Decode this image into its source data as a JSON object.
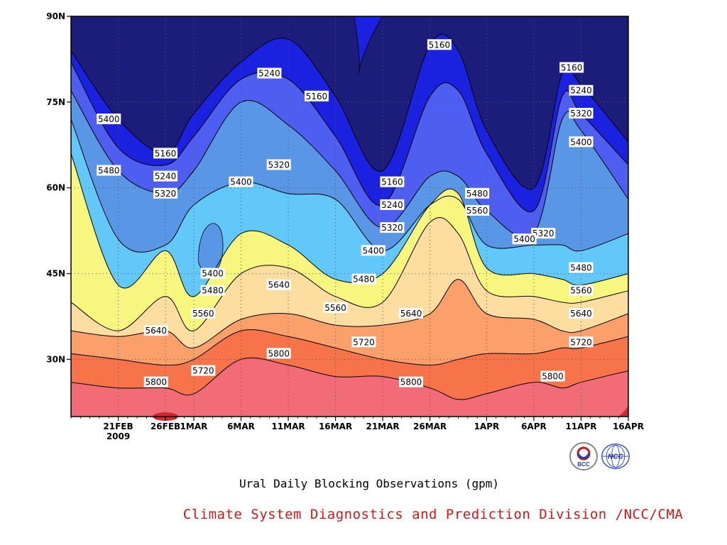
{
  "chart_data": {
    "type": "heatmap",
    "subtype": "filled contour (latitude-time Hovmoller)",
    "title": "Ural Daily Blocking Observations (gpm)",
    "x_axis": {
      "type": "date",
      "range": [
        "2009-02-16",
        "2009-04-16"
      ],
      "tick_labels": [
        "21FEB",
        "26FEB",
        "1MAR",
        "6MAR",
        "11MAR",
        "16MAR",
        "21MAR",
        "26MAR",
        "1APR",
        "6APR",
        "11APR",
        "16APR"
      ],
      "tick_dates": [
        "2009-02-21",
        "2009-02-26",
        "2009-03-01",
        "2009-03-06",
        "2009-03-11",
        "2009-03-16",
        "2009-03-21",
        "2009-03-26",
        "2009-04-01",
        "2009-04-06",
        "2009-04-11",
        "2009-04-16"
      ],
      "year_label": "2009"
    },
    "y_axis": {
      "range_degN": [
        20,
        90
      ],
      "tick_labels": [
        "30N",
        "45N",
        "60N",
        "75N",
        "90N"
      ],
      "tick_values": [
        30,
        45,
        60,
        75,
        90
      ]
    },
    "grid": "dotted",
    "contour_levels": [
      5160,
      5240,
      5320,
      5400,
      5480,
      5560,
      5640,
      5720,
      5800
    ],
    "fill_colors": [
      "#1c1c7a",
      "#1a22e0",
      "#4e5ef0",
      "#5a96e6",
      "#62c8fa",
      "#f7f780",
      "#fddda0",
      "#fba06a",
      "#f7744a",
      "#f26c78",
      "#d82630"
    ],
    "x_nodes": [
      "2009-02-16",
      "2009-02-21",
      "2009-02-26",
      "2009-03-01",
      "2009-03-06",
      "2009-03-11",
      "2009-03-16",
      "2009-03-21",
      "2009-03-26",
      "2009-03-29",
      "2009-04-01",
      "2009-04-06",
      "2009-04-09",
      "2009-04-11",
      "2009-04-16"
    ],
    "contours_latitude_degN": [
      {
        "level": 5160,
        "lat": [
          84,
          72,
          66,
          73,
          82,
          86,
          76,
          63,
          85,
          84,
          70,
          60,
          80,
          78,
          68
        ]
      },
      {
        "level": 5240,
        "lat": [
          82,
          67,
          64,
          69,
          79,
          79,
          69,
          57,
          76,
          77,
          66,
          56,
          76,
          73,
          64
        ]
      },
      {
        "level": 5320,
        "lat": [
          77,
          63,
          59,
          63,
          75,
          71,
          63,
          53,
          62,
          62,
          56,
          52,
          72,
          70,
          58
        ]
      },
      {
        "level": 5400,
        "lat": [
          72,
          51,
          50,
          57,
          61,
          59,
          58,
          49,
          57,
          58,
          50,
          50,
          50,
          49,
          52
        ]
      },
      {
        "level": 5480,
        "lat": [
          66,
          43,
          49,
          41,
          52,
          50,
          44,
          45,
          57,
          59,
          46,
          45,
          44,
          43,
          45
        ]
      },
      {
        "level": 5560,
        "lat": [
          40,
          35,
          41,
          35,
          45,
          46,
          41,
          40,
          54,
          52,
          42,
          41,
          40,
          40,
          42
        ]
      },
      {
        "level": 5640,
        "lat": [
          35,
          34,
          35,
          32,
          37,
          38,
          36,
          36,
          38,
          44,
          38,
          37,
          35,
          35,
          38
        ]
      },
      {
        "level": 5720,
        "lat": [
          31,
          30,
          29,
          30,
          35,
          34,
          32,
          30,
          29,
          30,
          31,
          31,
          32,
          32,
          34
        ]
      },
      {
        "level": 5800,
        "lat": [
          26,
          25,
          25,
          24,
          30,
          29,
          27,
          27,
          25,
          23,
          24,
          26,
          25,
          26,
          28
        ]
      }
    ],
    "contour_labels": [
      {
        "text": "5400",
        "date": "2009-02-20",
        "lat": 72
      },
      {
        "text": "5480",
        "date": "2009-02-20",
        "lat": 63
      },
      {
        "text": "5160",
        "date": "2009-02-26",
        "lat": 66
      },
      {
        "text": "5240",
        "date": "2009-02-26",
        "lat": 62
      },
      {
        "text": "5320",
        "date": "2009-02-26",
        "lat": 59
      },
      {
        "text": "5240",
        "date": "2009-03-09",
        "lat": 80
      },
      {
        "text": "5400",
        "date": "2009-03-06",
        "lat": 61
      },
      {
        "text": "5320",
        "date": "2009-03-10",
        "lat": 64
      },
      {
        "text": "5160",
        "date": "2009-03-14",
        "lat": 76
      },
      {
        "text": "5400",
        "date": "2009-03-03",
        "lat": 45
      },
      {
        "text": "5480",
        "date": "2009-03-03",
        "lat": 42
      },
      {
        "text": "5560",
        "date": "2009-03-02",
        "lat": 38
      },
      {
        "text": "5640",
        "date": "2009-03-10",
        "lat": 43
      },
      {
        "text": "5640",
        "date": "2009-02-25",
        "lat": 35
      },
      {
        "text": "5800",
        "date": "2009-03-10",
        "lat": 31
      },
      {
        "text": "5720",
        "date": "2009-03-02",
        "lat": 28
      },
      {
        "text": "5800",
        "date": "2009-02-25",
        "lat": 26
      },
      {
        "text": "5560",
        "date": "2009-03-16",
        "lat": 39
      },
      {
        "text": "5480",
        "date": "2009-03-19",
        "lat": 44
      },
      {
        "text": "5720",
        "date": "2009-03-19",
        "lat": 33
      },
      {
        "text": "5160",
        "date": "2009-03-22",
        "lat": 61
      },
      {
        "text": "5240",
        "date": "2009-03-22",
        "lat": 57
      },
      {
        "text": "5320",
        "date": "2009-03-22",
        "lat": 53
      },
      {
        "text": "5400",
        "date": "2009-03-20",
        "lat": 49
      },
      {
        "text": "5640",
        "date": "2009-03-24",
        "lat": 38
      },
      {
        "text": "5800",
        "date": "2009-03-24",
        "lat": 26
      },
      {
        "text": "5160",
        "date": "2009-03-27",
        "lat": 85
      },
      {
        "text": "5480",
        "date": "2009-03-31",
        "lat": 59
      },
      {
        "text": "5560",
        "date": "2009-03-31",
        "lat": 56
      },
      {
        "text": "5320",
        "date": "2009-04-07",
        "lat": 52
      },
      {
        "text": "5400",
        "date": "2009-04-05",
        "lat": 51
      },
      {
        "text": "5160",
        "date": "2009-04-10",
        "lat": 81
      },
      {
        "text": "5240",
        "date": "2009-04-11",
        "lat": 77
      },
      {
        "text": "5320",
        "date": "2009-04-11",
        "lat": 73
      },
      {
        "text": "5400",
        "date": "2009-04-11",
        "lat": 68
      },
      {
        "text": "5480",
        "date": "2009-04-11",
        "lat": 46
      },
      {
        "text": "5560",
        "date": "2009-04-11",
        "lat": 42
      },
      {
        "text": "5640",
        "date": "2009-04-11",
        "lat": 38
      },
      {
        "text": "5720",
        "date": "2009-04-11",
        "lat": 33
      },
      {
        "text": "5800",
        "date": "2009-04-08",
        "lat": 27
      }
    ]
  },
  "footer": {
    "chart_title": "Ural Daily Blocking Observations (gpm)",
    "organization": "Climate System Diagnostics and Prediction Division /NCC/CMA",
    "logos": [
      {
        "name": "bcc-logo",
        "text": "BCC"
      },
      {
        "name": "ncc-logo",
        "text": "NCC"
      }
    ]
  },
  "colors": {
    "organization_text": "#d01818",
    "grid": "#555555"
  }
}
